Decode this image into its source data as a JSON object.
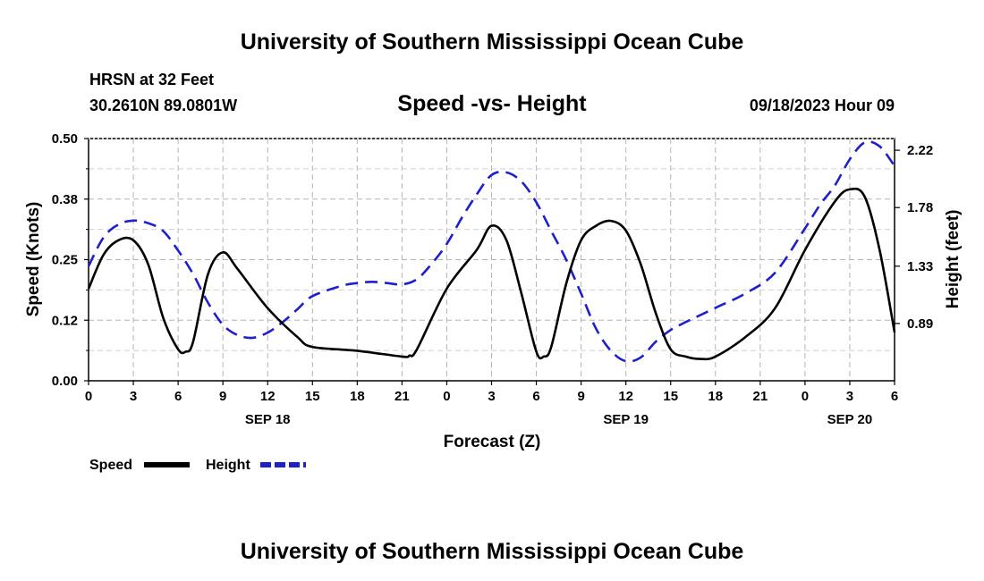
{
  "header": {
    "title": "University of Southern Mississippi Ocean Cube",
    "station": "HRSN at 32 Feet",
    "location": "30.2610N  89.0801W",
    "subtitle": "Speed -vs- Height",
    "datetime": "09/18/2023 Hour 09"
  },
  "footer": {
    "title": "University of Southern Mississippi Ocean Cube"
  },
  "legend": {
    "speed_label": "Speed",
    "height_label": "Height"
  },
  "chart_data": {
    "type": "line",
    "title": "Speed -vs- Height",
    "xlabel": "Forecast (Z)",
    "ylabel_left": "Speed (Knots)",
    "ylabel_right": "Height (feet)",
    "x_unit": "hours from 09/18 00Z",
    "xlim": [
      0,
      54
    ],
    "ylim_left": [
      0.0,
      0.5
    ],
    "ylim_right": [
      0.45,
      2.31
    ],
    "x_ticks": [
      {
        "hour": 0,
        "label": "0"
      },
      {
        "hour": 3,
        "label": "3"
      },
      {
        "hour": 6,
        "label": "6"
      },
      {
        "hour": 9,
        "label": "9"
      },
      {
        "hour": 12,
        "label": "12"
      },
      {
        "hour": 15,
        "label": "15"
      },
      {
        "hour": 18,
        "label": "18"
      },
      {
        "hour": 21,
        "label": "21"
      },
      {
        "hour": 24,
        "label": "0"
      },
      {
        "hour": 27,
        "label": "3"
      },
      {
        "hour": 30,
        "label": "6"
      },
      {
        "hour": 33,
        "label": "9"
      },
      {
        "hour": 36,
        "label": "12"
      },
      {
        "hour": 39,
        "label": "15"
      },
      {
        "hour": 42,
        "label": "18"
      },
      {
        "hour": 45,
        "label": "21"
      },
      {
        "hour": 48,
        "label": "0"
      },
      {
        "hour": 51,
        "label": "3"
      },
      {
        "hour": 54,
        "label": "6"
      }
    ],
    "date_labels": [
      {
        "hour": 12,
        "label": "SEP 18"
      },
      {
        "hour": 36,
        "label": "SEP 19"
      },
      {
        "hour": 51,
        "label": "SEP 20"
      }
    ],
    "y_ticks_left": [
      {
        "value": 0.0,
        "label": "0.00"
      },
      {
        "value": 0.125,
        "label": "0.12"
      },
      {
        "value": 0.25,
        "label": "0.25"
      },
      {
        "value": 0.375,
        "label": "0.38"
      },
      {
        "value": 0.5,
        "label": "0.50"
      }
    ],
    "y_ticks_right": [
      {
        "value": 0.89,
        "label": "0.89"
      },
      {
        "value": 1.33,
        "label": "1.33"
      },
      {
        "value": 1.78,
        "label": "1.78"
      },
      {
        "value": 2.22,
        "label": "2.22"
      }
    ],
    "series": [
      {
        "name": "Speed",
        "axis": "left",
        "color": "#000000",
        "dash": "solid",
        "x": [
          0,
          1,
          2,
          3,
          4,
          5,
          6,
          6.5,
          7,
          8,
          9,
          10,
          12,
          14,
          15,
          18,
          21,
          21.5,
          22,
          24,
          26,
          27,
          28,
          29,
          30,
          30.5,
          31,
          32,
          33,
          34,
          35,
          36,
          37,
          38,
          39,
          40,
          41,
          42,
          44,
          46,
          48,
          50,
          51,
          52,
          53,
          54
        ],
        "values": [
          0.19,
          0.26,
          0.29,
          0.29,
          0.24,
          0.13,
          0.065,
          0.06,
          0.08,
          0.22,
          0.265,
          0.23,
          0.15,
          0.09,
          0.07,
          0.062,
          0.05,
          0.052,
          0.065,
          0.19,
          0.27,
          0.32,
          0.29,
          0.18,
          0.06,
          0.05,
          0.07,
          0.2,
          0.29,
          0.32,
          0.33,
          0.31,
          0.24,
          0.14,
          0.065,
          0.05,
          0.045,
          0.05,
          0.09,
          0.15,
          0.27,
          0.37,
          0.395,
          0.38,
          0.27,
          0.1
        ]
      },
      {
        "name": "Height",
        "axis": "right",
        "color": "#1f1fcc",
        "dash": "dashed",
        "x": [
          0,
          1,
          2,
          3,
          4,
          5,
          6,
          7,
          8,
          9,
          10,
          11,
          12,
          13,
          14,
          15,
          17,
          18,
          19,
          20,
          21,
          22,
          23,
          24,
          25,
          26,
          27,
          28,
          29,
          30,
          31,
          32,
          33,
          34,
          35,
          36,
          37,
          38,
          39,
          40,
          42,
          44,
          46,
          48,
          49,
          50,
          51,
          52,
          53,
          54
        ],
        "values": [
          1.33,
          1.55,
          1.65,
          1.68,
          1.66,
          1.6,
          1.45,
          1.27,
          1.05,
          0.88,
          0.8,
          0.78,
          0.82,
          0.9,
          1.0,
          1.1,
          1.18,
          1.2,
          1.21,
          1.2,
          1.19,
          1.23,
          1.35,
          1.5,
          1.7,
          1.88,
          2.03,
          2.05,
          1.98,
          1.82,
          1.6,
          1.38,
          1.12,
          0.85,
          0.68,
          0.6,
          0.63,
          0.75,
          0.84,
          0.9,
          1.01,
          1.12,
          1.28,
          1.62,
          1.8,
          1.95,
          2.15,
          2.28,
          2.25,
          2.1
        ]
      }
    ]
  }
}
